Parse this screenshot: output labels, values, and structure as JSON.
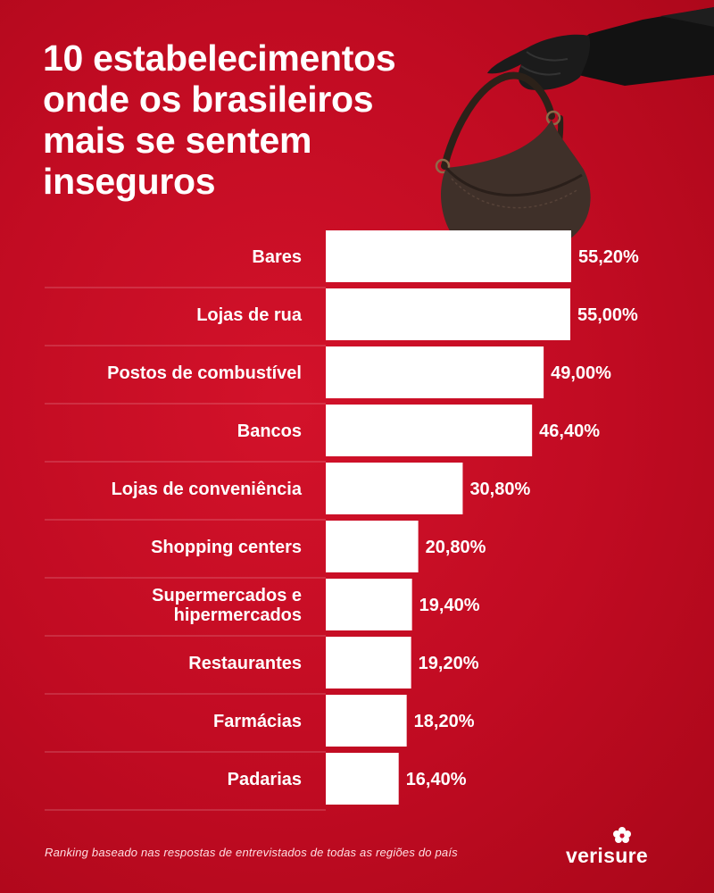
{
  "title": "10 estabelecimentos\nonde os brasileiros\nmais se sentem\ninseguros",
  "chart_data": {
    "type": "bar",
    "orientation": "horizontal",
    "categories": [
      "Bares",
      "Lojas de rua",
      "Postos de combustível",
      "Bancos",
      "Lojas de conveniência",
      "Shopping centers",
      "Supermercados e\nhipermercados",
      "Restaurantes",
      "Farmácias",
      "Padarias"
    ],
    "values": [
      55.2,
      55.0,
      49.0,
      46.4,
      30.8,
      20.8,
      19.4,
      19.2,
      18.2,
      16.4
    ],
    "value_labels": [
      "55,20%",
      "55,00%",
      "49,00%",
      "46,40%",
      "30,80%",
      "20,80%",
      "19,40%",
      "19,20%",
      "18,20%",
      "16,40%"
    ],
    "xlim": [
      0,
      55.2
    ],
    "unit": "%",
    "bar_color": "#ffffff",
    "grid": false,
    "legend": "none"
  },
  "footnote": "Ranking baseado nas respostas de entrevistados de todas as regiões do país",
  "brand": {
    "name": "verisure"
  },
  "colors": {
    "background": "#c8102e",
    "bar": "#ffffff",
    "text": "#ffffff"
  },
  "image": {
    "subject": "gloved hand holding a brown leather handbag"
  }
}
